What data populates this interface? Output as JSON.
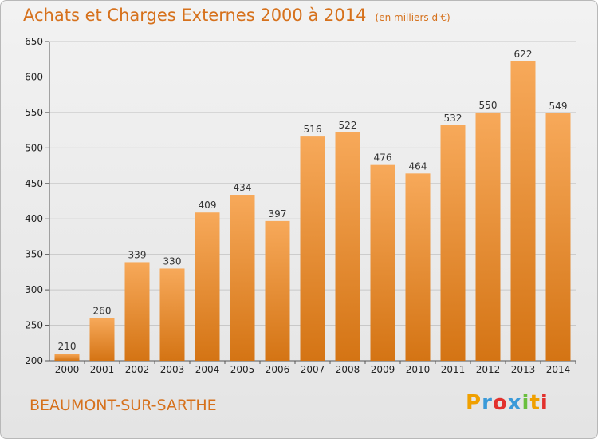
{
  "header": {
    "title": "Achats et Charges Externes 2000 à 2014",
    "unit": "(en milliers d'€)"
  },
  "footer": {
    "city": "BEAUMONT-SUR-SARTHE"
  },
  "logo": {
    "letters": [
      "P",
      "r",
      "o",
      "x",
      "i",
      "t",
      "i"
    ],
    "colors": [
      "#f0a000",
      "#3a9ad9",
      "#e2312d",
      "#3a9ad9",
      "#6abf3e",
      "#f0a000",
      "#e2312d"
    ]
  },
  "colors": {
    "bar_top": "#f7a95a",
    "bar_bottom": "#d47414",
    "title": "#d6711c"
  },
  "chart_data": {
    "type": "bar",
    "categories": [
      "2000",
      "2001",
      "2002",
      "2003",
      "2004",
      "2005",
      "2006",
      "2007",
      "2008",
      "2009",
      "2010",
      "2011",
      "2012",
      "2013",
      "2014"
    ],
    "values": [
      210,
      260,
      339,
      330,
      409,
      434,
      397,
      516,
      522,
      476,
      464,
      532,
      550,
      622,
      549
    ],
    "ylim": [
      200,
      650
    ],
    "yticks": [
      200,
      250,
      300,
      350,
      400,
      450,
      500,
      550,
      600,
      650
    ],
    "grid": true,
    "title": "Achats et Charges Externes 2000 à 2014",
    "xlabel": "",
    "ylabel": ""
  }
}
